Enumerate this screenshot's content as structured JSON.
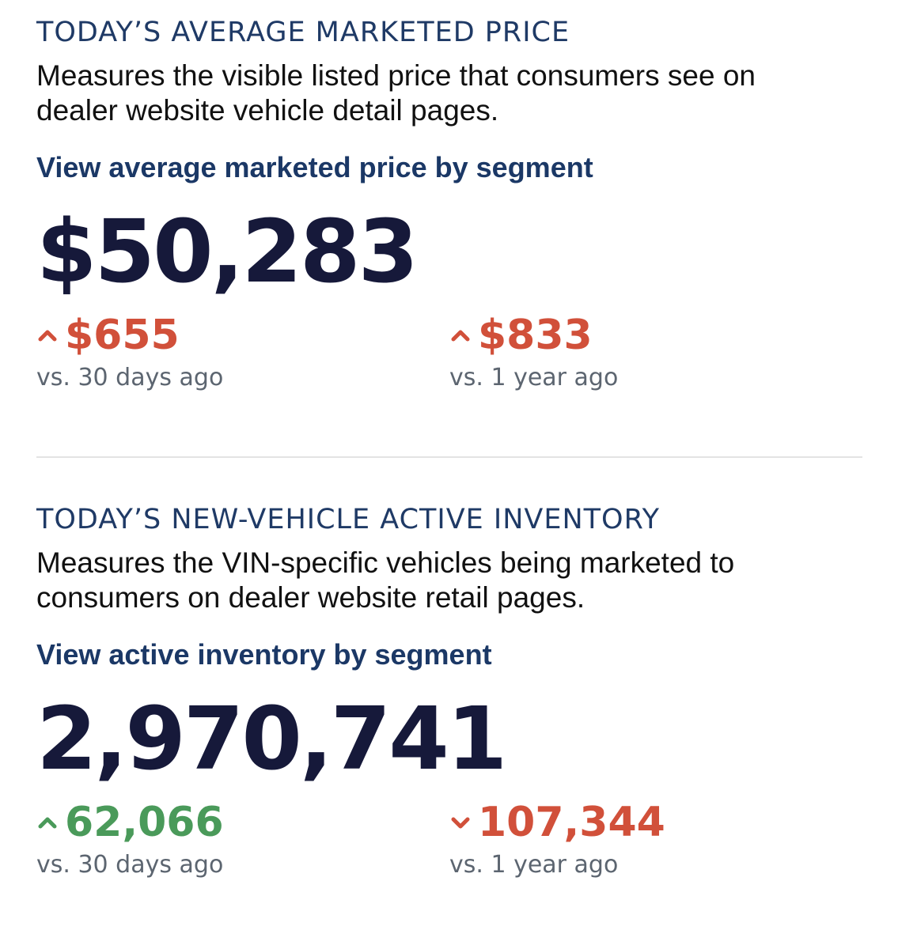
{
  "price": {
    "heading": "TODAY’S AVERAGE MARKETED PRICE",
    "description": "Measures the visible listed price that consumers see on dealer website vehicle detail pages.",
    "link_label": "View average marketed price by segment",
    "value": "$50,283",
    "change_30d": {
      "value": "$655",
      "direction": "up",
      "label": "vs. 30 days ago",
      "color": "#d1503a"
    },
    "change_1y": {
      "value": "$833",
      "direction": "up",
      "label": "vs. 1 year ago",
      "color": "#d1503a"
    }
  },
  "inventory": {
    "heading": "TODAY’S NEW-VEHICLE ACTIVE INVENTORY",
    "description": "Measures the VIN-specific vehicles being marketed to consumers on dealer website retail pages.",
    "link_label": "View active inventory by segment",
    "value": "2,970,741",
    "change_30d": {
      "value": "62,066",
      "direction": "up",
      "label": "vs. 30 days ago",
      "color": "#4a9a5a"
    },
    "change_1y": {
      "value": "107,344",
      "direction": "down",
      "label": "vs. 1 year ago",
      "color": "#d1503a"
    }
  },
  "icons": {
    "up": "caret-up-icon",
    "down": "caret-down-icon"
  }
}
